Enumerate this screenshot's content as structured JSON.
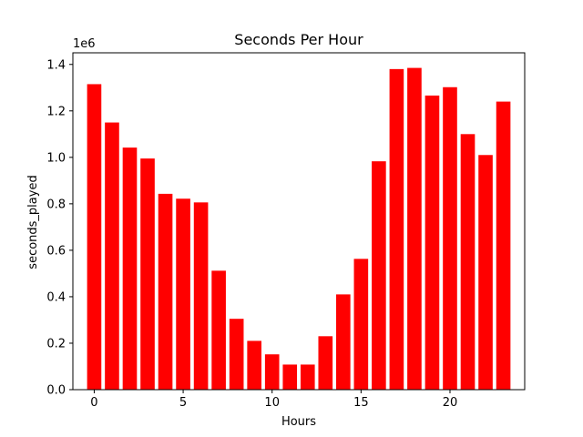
{
  "chart_data": {
    "type": "bar",
    "title": "Seconds Per Hour",
    "xlabel": "Hours",
    "ylabel": "seconds_played",
    "y_offset_text": "1e6",
    "bar_color": "#ff0000",
    "categories": [
      0,
      1,
      2,
      3,
      4,
      5,
      6,
      7,
      8,
      9,
      10,
      11,
      12,
      13,
      14,
      15,
      16,
      17,
      18,
      19,
      20,
      21,
      22,
      23
    ],
    "values": [
      1315000,
      1150000,
      1042000,
      995000,
      843000,
      822000,
      806000,
      512000,
      305000,
      210000,
      152000,
      108000,
      108000,
      230000,
      410000,
      563000,
      983000,
      1380000,
      1385000,
      1266000,
      1302000,
      1100000,
      1010000,
      1240000
    ],
    "xlim": [
      -1.2,
      24.2
    ],
    "ylim": [
      0,
      1450000
    ],
    "x_ticks": [
      0,
      5,
      10,
      15,
      20
    ],
    "y_ticks": [
      0,
      200000,
      400000,
      600000,
      800000,
      1000000,
      1200000,
      1400000
    ],
    "y_tick_labels": [
      "0.0",
      "0.2",
      "0.4",
      "0.6",
      "0.8",
      "1.0",
      "1.2",
      "1.4"
    ],
    "grid": false,
    "legend": "none"
  }
}
